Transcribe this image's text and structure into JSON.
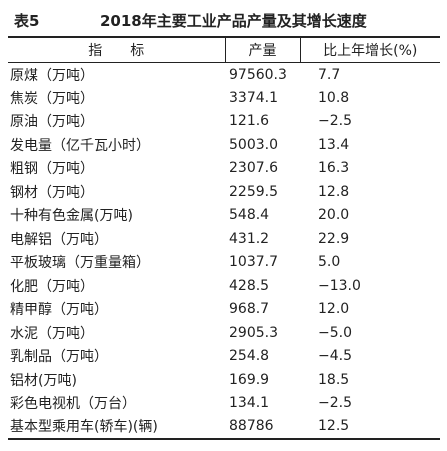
{
  "table_label": "表5",
  "title": "2018年主要工业产品产量及其增长速度",
  "header": [
    "指　　标",
    "产量",
    "比上年增长(%)"
  ],
  "rows": [
    [
      "原煤（万吨）",
      "97560.3",
      "7.7"
    ],
    [
      "焦炭（万吨）",
      "3374.1",
      "10.8"
    ],
    [
      "原油（万吨）",
      "121.6",
      "−2.5"
    ],
    [
      "发电量（亿千瓦小时）",
      "5003.0",
      "13.4"
    ],
    [
      "粗钢（万吨）",
      "2307.6",
      "16.3"
    ],
    [
      "钢材（万吨）",
      "2259.5",
      "12.8"
    ],
    [
      "十种有色金属(万吨)",
      "548.4",
      "20.0"
    ],
    [
      "电解铝（万吨）",
      "431.2",
      "22.9"
    ],
    [
      "平板玻璃（万重量箱）",
      "1037.7",
      "5.0"
    ],
    [
      "化肥（万吨）",
      "428.5",
      "−13.0"
    ],
    [
      "精甲醇（万吨）",
      "968.7",
      "12.0"
    ],
    [
      "水泥（万吨）",
      "2905.3",
      "−5.0"
    ],
    [
      "乳制品（万吨）",
      "254.8",
      "−4.5"
    ],
    [
      "铝材(万吨)",
      "169.9",
      "18.5"
    ],
    [
      "彩色电视机（万台）",
      "134.1",
      "−2.5"
    ],
    [
      "基本型乘用车(轿车)(辆)",
      "88786",
      "12.5"
    ]
  ]
}
